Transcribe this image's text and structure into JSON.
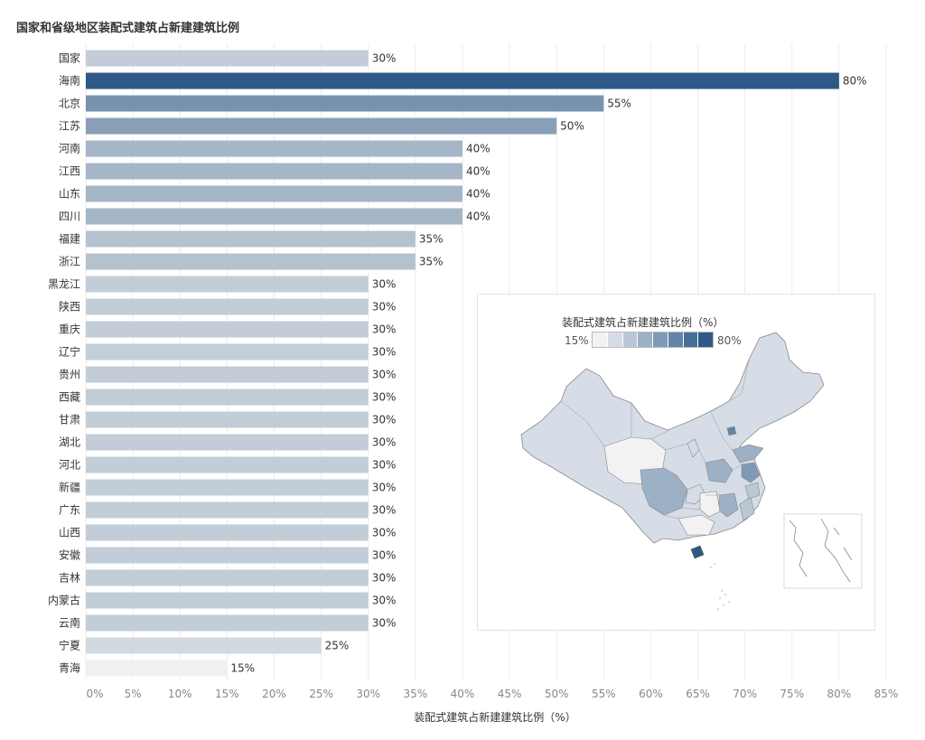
{
  "chart_data": {
    "type": "bar",
    "orientation": "horizontal",
    "title": "国家和省级地区装配式建筑占新建建筑比例",
    "categories": [
      "国家",
      "海南",
      "北京",
      "江苏",
      "河南",
      "江西",
      "山东",
      "四川",
      "福建",
      "浙江",
      "黑龙江",
      "陕西",
      "重庆",
      "辽宁",
      "贵州",
      "西藏",
      "甘肃",
      "湖北",
      "河北",
      "新疆",
      "广东",
      "山西",
      "安徽",
      "吉林",
      "内蒙古",
      "云南",
      "宁夏",
      "青海"
    ],
    "values": [
      30,
      80,
      55,
      50,
      40,
      40,
      40,
      40,
      35,
      35,
      30,
      30,
      30,
      30,
      30,
      30,
      30,
      30,
      30,
      30,
      30,
      30,
      30,
      30,
      30,
      30,
      25,
      15
    ],
    "value_labels": [
      "30%",
      "80%",
      "55%",
      "50%",
      "40%",
      "40%",
      "40%",
      "40%",
      "35%",
      "35%",
      "30%",
      "30%",
      "30%",
      "30%",
      "30%",
      "30%",
      "30%",
      "30%",
      "30%",
      "30%",
      "30%",
      "30%",
      "30%",
      "30%",
      "30%",
      "30%",
      "25%",
      "15%"
    ],
    "xlabel": "装配式建筑占新建建筑比例（%）",
    "ylabel": "",
    "xlim": [
      0,
      85
    ],
    "x_ticks": [
      "0%",
      "5%",
      "10%",
      "15%",
      "20%",
      "25%",
      "30%",
      "35%",
      "40%",
      "45%",
      "50%",
      "55%",
      "60%",
      "65%",
      "70%",
      "75%",
      "80%",
      "85%"
    ],
    "grid": "vertical",
    "color_scale": {
      "min": 15,
      "max": 80,
      "min_color": "#f0f0f0",
      "max_color": "#2e5986"
    }
  },
  "map": {
    "legend_title": "装配式建筑占新建建筑比例（%）",
    "legend_min": "15%",
    "legend_max": "80%",
    "legend_colors": [
      "#f2f2f2",
      "#d6dde7",
      "#b9c7d6",
      "#9cb0c6",
      "#7f9ab6",
      "#6384a6",
      "#476e96",
      "#2e5986"
    ]
  }
}
